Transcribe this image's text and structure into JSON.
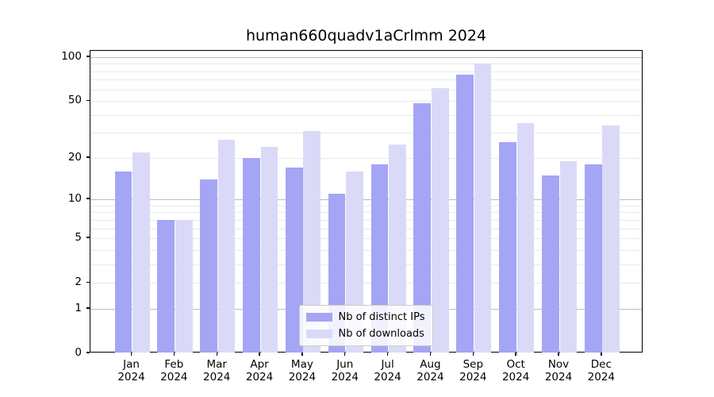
{
  "title": "human660quadv1aCrlmm 2024",
  "chart_data": {
    "type": "bar",
    "title": "human660quadv1aCrlmm 2024",
    "categories": [
      "Jan 2024",
      "Feb 2024",
      "Mar 2024",
      "Apr 2024",
      "May 2024",
      "Jun 2024",
      "Jul 2024",
      "Aug 2024",
      "Sep 2024",
      "Oct 2024",
      "Nov 2024",
      "Dec 2024"
    ],
    "months": [
      "Jan",
      "Feb",
      "Mar",
      "Apr",
      "May",
      "Jun",
      "Jul",
      "Aug",
      "Sep",
      "Oct",
      "Nov",
      "Dec"
    ],
    "year": "2024",
    "series": [
      {
        "name": "Nb of distinct IPs",
        "color": "#a5a5f5",
        "values": [
          16,
          7,
          14,
          20,
          17,
          11,
          18,
          48,
          76,
          26,
          15,
          18
        ]
      },
      {
        "name": "Nb of downloads",
        "color": "#dadaf8",
        "values": [
          22,
          7,
          27,
          24,
          31,
          16,
          25,
          61,
          91,
          35,
          19,
          34
        ]
      }
    ],
    "y_axis": {
      "scale": "log1p",
      "range": [
        0,
        100
      ],
      "tick_labels": [
        100,
        50,
        20,
        10,
        5,
        2,
        1,
        0
      ],
      "major_gridlines": [
        1,
        10,
        100
      ],
      "minor_gridlines": [
        2,
        3,
        4,
        5,
        6,
        7,
        8,
        9,
        20,
        30,
        40,
        50,
        60,
        70,
        80,
        90
      ]
    },
    "legend_position": "lower center",
    "grid": true,
    "colors": {
      "major_grid": "#bdbdbd",
      "minor_grid": "#eaeaea",
      "spine": "#000000"
    }
  },
  "legend": {
    "items": [
      {
        "label": "Nb of distinct IPs"
      },
      {
        "label": "Nb of downloads"
      }
    ]
  }
}
